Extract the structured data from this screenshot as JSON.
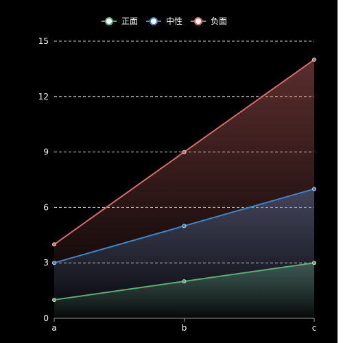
{
  "chart_data": {
    "type": "area",
    "categories": [
      "a",
      "b",
      "c"
    ],
    "series": [
      {
        "name": "正面",
        "values": [
          1,
          2,
          3
        ],
        "color": "#5bae77"
      },
      {
        "name": "中性",
        "values": [
          3,
          5,
          7
        ],
        "color": "#3b86c8"
      },
      {
        "name": "负面",
        "values": [
          4,
          9,
          14
        ],
        "color": "#d86c6c"
      }
    ],
    "title": "",
    "xlabel": "",
    "ylabel": "",
    "ylim": [
      0,
      15
    ],
    "yticks": [
      0,
      3,
      6,
      9,
      12,
      15
    ],
    "grid": true,
    "legend_position": "top-center",
    "background": "#000000",
    "axis_color": "#9a9a9a",
    "grid_color": "#d0d0d0",
    "text_color": "#ffffff"
  }
}
